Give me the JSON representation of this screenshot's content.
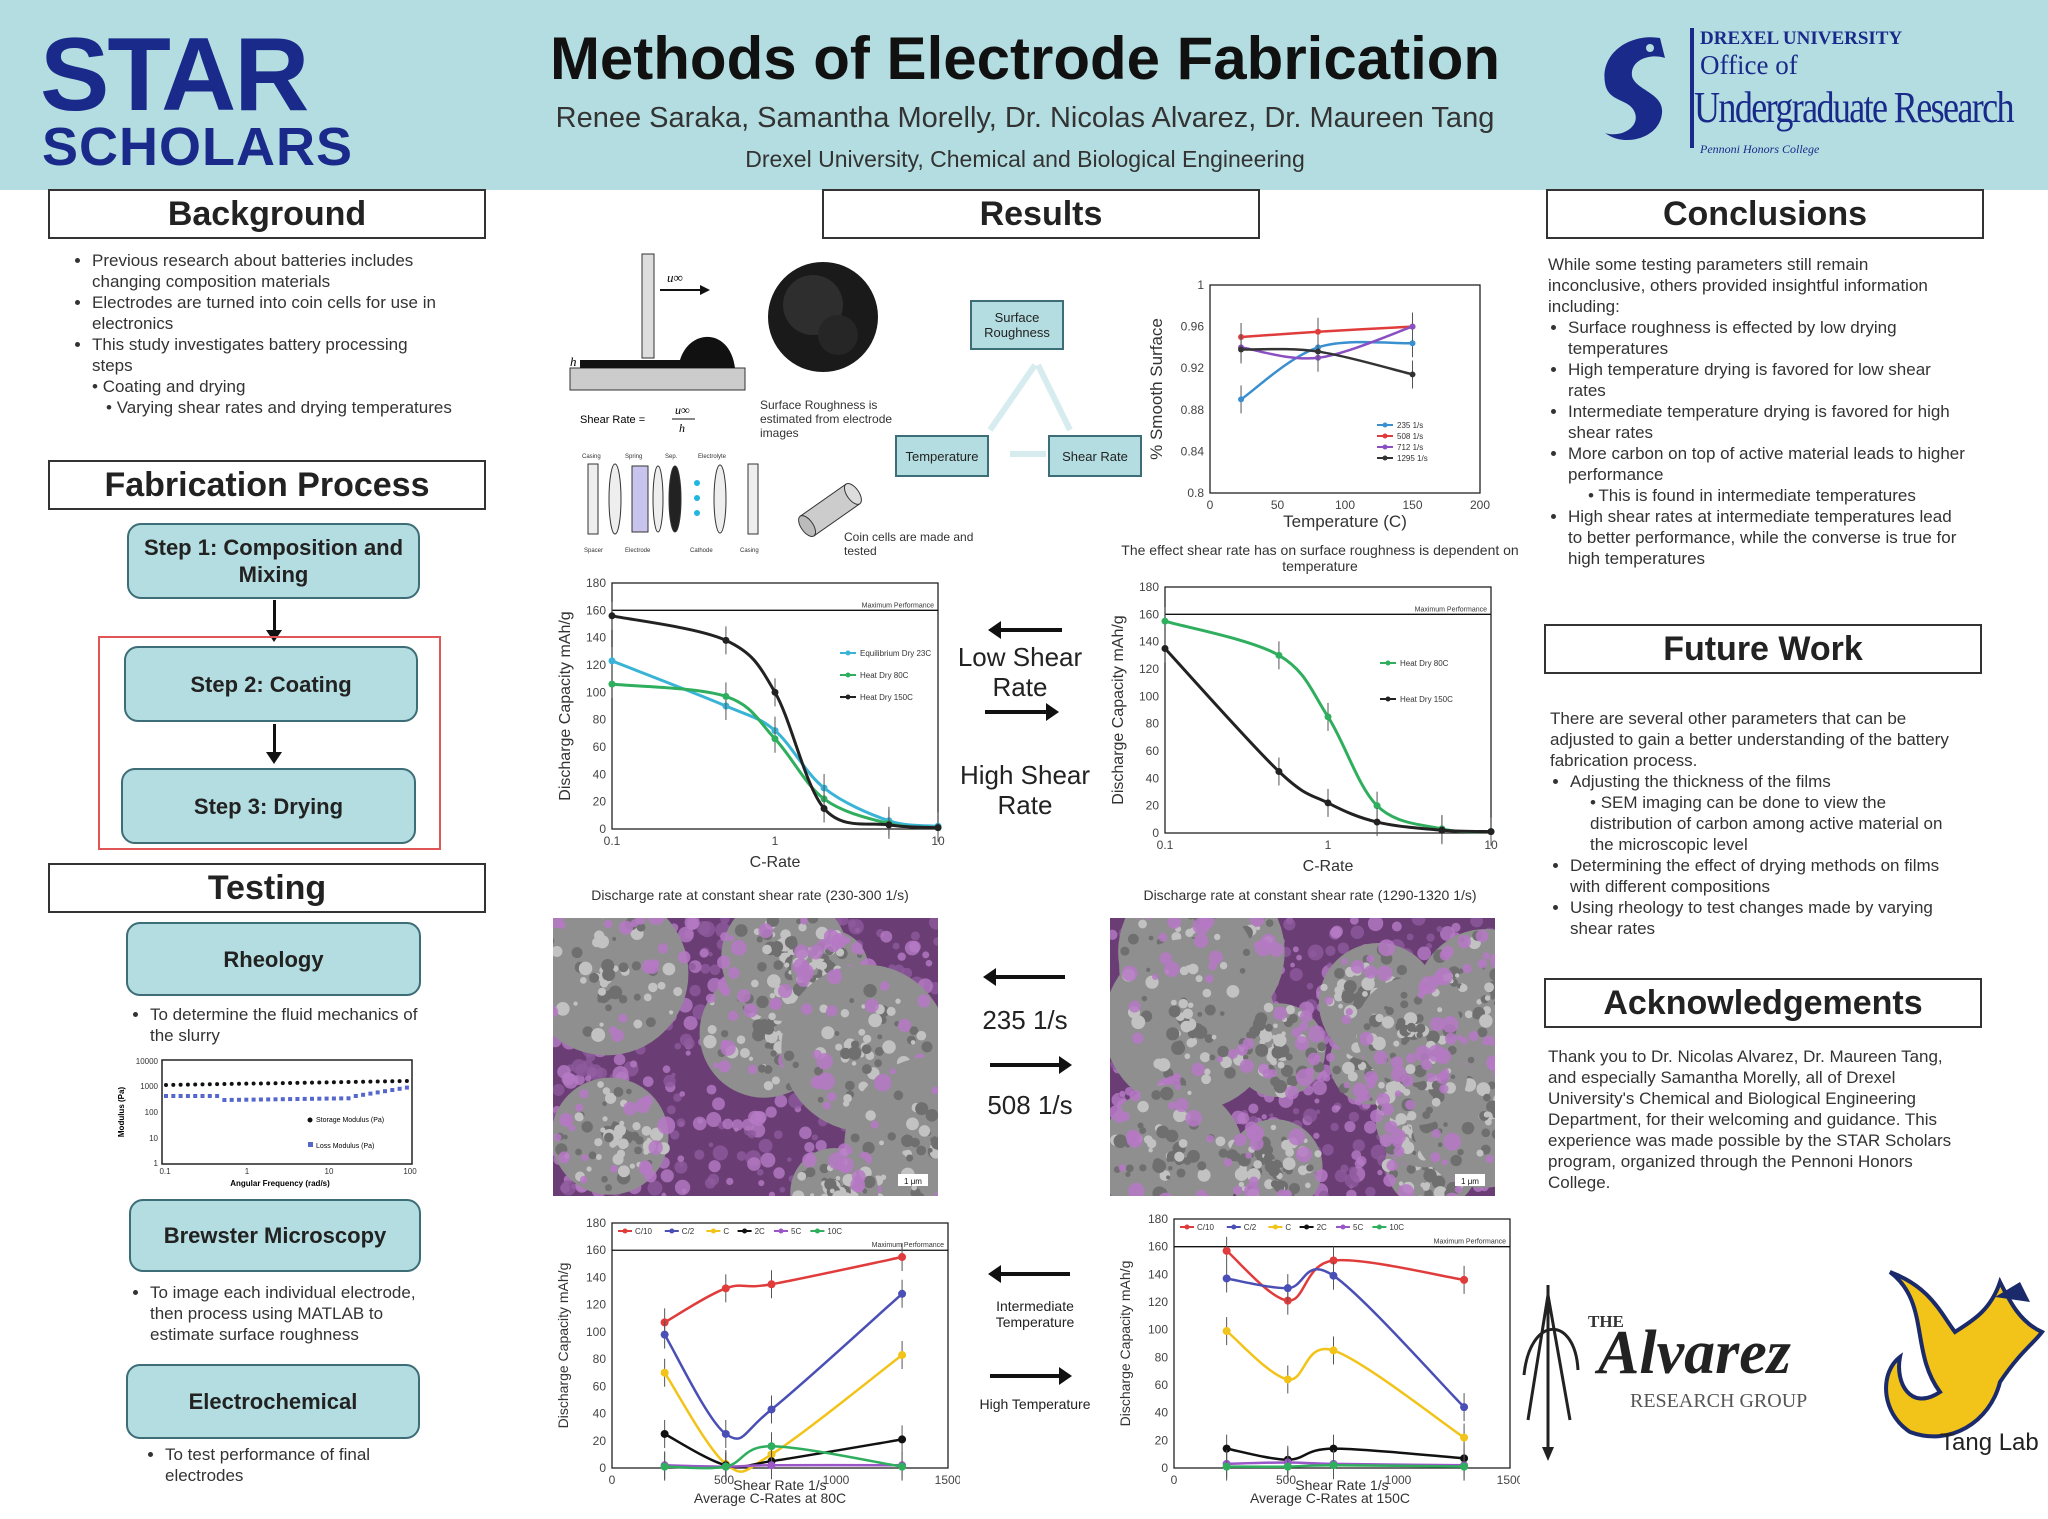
{
  "header": {
    "star_logo_line1": "STAR",
    "star_logo_line2": "SCHOLARS",
    "title": "Methods of Electrode Fabrication",
    "authors": "Renee Saraka, Samantha Morelly, Dr. Nicolas Alvarez, Dr. Maureen Tang",
    "affiliation": "Drexel University, Chemical and Biological Engineering",
    "drexel_logo": {
      "line1": "DREXEL UNIVERSITY",
      "line2": "Office of",
      "line3": "Undergraduate Research",
      "line4": "Pennoni Honors College"
    }
  },
  "background": {
    "heading": "Background",
    "bullets": [
      "Previous research about batteries includes changing composition materials",
      "Electrodes are turned into coin cells for use in electronics",
      "This study investigates battery processing steps"
    ],
    "sub1": "Coating and drying",
    "sub2": "Varying shear rates and drying temperatures"
  },
  "fabrication": {
    "heading": "Fabrication Process",
    "step1": "Step 1: Composition and Mixing",
    "step2": "Step 2: Coating",
    "step3": "Step 3: Drying"
  },
  "testing": {
    "heading": "Testing",
    "rheology": "Rheology",
    "rheology_text": "To determine the fluid mechanics of the slurry",
    "brewster": "Brewster Microscopy",
    "brewster_text": "To image each individual electrode, then process using MATLAB to estimate surface roughness",
    "electro": "Electrochemical",
    "electro_text": "To test performance of final electrodes",
    "rheo_chart": {
      "ylabel": "Modulus (Pa)",
      "xlabel": "Angular Frequency (rad/s)",
      "legend1": "Storage Modulus (Pa)",
      "legend2": "Loss Modulus (Pa)",
      "yticks": [
        "10000",
        "1000",
        "100",
        "10",
        "1"
      ],
      "xticks": [
        "0.1",
        "1",
        "10",
        "100"
      ]
    }
  },
  "results": {
    "heading": "Results",
    "shear_diagram": {
      "u_label": "u∞",
      "h_label": "h",
      "formula": "Shear Rate =",
      "num": "u∞",
      "den": "h"
    },
    "roughness_caption": "Surface Roughness is estimated from electrode images",
    "coin_caption": "Coin cells are made and tested",
    "coin_parts": [
      "Casing",
      "Spring",
      "Spacer",
      "Electrode",
      "Sep.",
      "Electrolyte",
      "Cathode",
      "Casing"
    ],
    "triangle": {
      "top": "Surface Roughness",
      "left": "Temperature",
      "right": "Shear Rate"
    },
    "low_shear": "Low Shear Rate",
    "high_shear": "High Shear Rate",
    "rate_235": "235 1/s",
    "rate_508": "508 1/s",
    "intermediate_temp": "Intermediate Temperature",
    "high_temp": "High Temperature",
    "scale_bar": "1 μm",
    "caption_a": "Discharge rate at constant shear rate (230-300 1/s)",
    "caption_b": "Discharge rate at constant shear rate (1290-1320 1/s)",
    "caption_rough": "The effect shear rate has on surface roughness is dependent on temperature",
    "caption_c": "Average C-Rates at 80C",
    "caption_d": "Average C-Rates at 150C"
  },
  "conclusions": {
    "heading": "Conclusions",
    "intro": "While some testing parameters still remain inconclusive, others provided insightful information including:",
    "b1": "Surface roughness is effected by low drying temperatures",
    "b2": "High temperature drying is favored for low shear rates",
    "b3": "Intermediate temperature drying is favored for high shear rates",
    "b4": "More carbon on top of active material leads to higher performance",
    "b4sub": "This is found in intermediate temperatures",
    "b5": "High shear rates at intermediate temperatures lead to better performance, while the converse is true for high temperatures"
  },
  "future": {
    "heading": "Future Work",
    "intro": "There are several other parameters that can be adjusted to gain a better understanding of the battery fabrication process.",
    "b1": "Adjusting the thickness of the films",
    "b1sub": "SEM imaging can be done to view the distribution of carbon among active material on the microscopic level",
    "b2": "Determining the effect of drying methods on films with different compositions",
    "b3": "Using rheology to test changes made by varying shear rates"
  },
  "ack": {
    "heading": "Acknowledgements",
    "text": "Thank you to Dr. Nicolas Alvarez, Dr. Maureen Tang, and especially Samantha Morelly, all of Drexel University's Chemical and Biological Engineering Department, for their welcoming and guidance. This experience was made possible by the STAR Scholars program, organized through the Pennoni Honors College."
  },
  "logos": {
    "alvarez_the": "THE",
    "alvarez_name": "Alvarez",
    "alvarez_sub": "RESEARCH GROUP",
    "tang": "Tang Lab"
  },
  "colors": {
    "header_bg": "#b3dde0",
    "box_fill": "#b3dde0",
    "navy": "#1a2a8a",
    "sem_purple": "#a45bb3"
  },
  "chart_data": [
    {
      "id": "roughness",
      "type": "line",
      "xlabel": "Temperature (C)",
      "ylabel": "% Smooth Surface",
      "xlim": [
        0,
        200
      ],
      "ylim": [
        0.8,
        1
      ],
      "xticks": [
        0,
        50,
        100,
        150,
        200
      ],
      "yticks": [
        0.8,
        0.84,
        0.88,
        0.92,
        0.96,
        1
      ],
      "x": [
        23,
        80,
        150
      ],
      "series": [
        {
          "name": "235 1/s",
          "color": "#3a8fd0",
          "values": [
            0.89,
            0.94,
            0.944
          ]
        },
        {
          "name": "508 1/s",
          "color": "#e03c3c",
          "values": [
            0.95,
            0.955,
            0.96
          ]
        },
        {
          "name": "712 1/s",
          "color": "#8a4fc2",
          "values": [
            0.94,
            0.93,
            0.96
          ]
        },
        {
          "name": "1295 1/s",
          "color": "#333333",
          "values": [
            0.938,
            0.936,
            0.914
          ]
        }
      ]
    },
    {
      "id": "discharge-low",
      "type": "line",
      "xlabel": "C-Rate",
      "ylabel": "Discharge Capacity mAh/g",
      "xscale": "log",
      "xlim": [
        0.1,
        10
      ],
      "ylim": [
        0,
        180
      ],
      "xticks": [
        0.1,
        1,
        10
      ],
      "yticks": [
        0,
        20,
        40,
        60,
        80,
        100,
        120,
        140,
        160,
        180
      ],
      "reference": {
        "label": "Maximum Performance",
        "value": 160
      },
      "x": [
        0.1,
        0.5,
        1,
        2,
        5,
        10
      ],
      "series": [
        {
          "name": "Equilibrium Dry 23C",
          "color": "#39b3d6",
          "values": [
            123,
            90,
            72,
            30,
            6,
            2
          ]
        },
        {
          "name": "Heat Dry 80C",
          "color": "#2fae5e",
          "values": [
            106,
            97,
            66,
            22,
            4,
            1
          ]
        },
        {
          "name": "Heat Dry 150C",
          "color": "#222222",
          "values": [
            156,
            138,
            100,
            15,
            3,
            1
          ]
        }
      ]
    },
    {
      "id": "discharge-high",
      "type": "line",
      "xlabel": "C-Rate",
      "ylabel": "Discharge Capacity mAh/g",
      "xscale": "log",
      "xlim": [
        0.1,
        10
      ],
      "ylim": [
        0,
        180
      ],
      "xticks": [
        0.1,
        1,
        10
      ],
      "yticks": [
        0,
        20,
        40,
        60,
        80,
        100,
        120,
        140,
        160,
        180
      ],
      "reference": {
        "label": "Maximum Performance",
        "value": 160
      },
      "x": [
        0.1,
        0.5,
        1,
        2,
        5,
        10
      ],
      "series": [
        {
          "name": "Heat Dry 80C",
          "color": "#2fae5e",
          "values": [
            155,
            130,
            85,
            20,
            3,
            1
          ]
        },
        {
          "name": "Heat Dry 150C",
          "color": "#222222",
          "values": [
            135,
            45,
            22,
            8,
            2,
            1
          ]
        }
      ]
    },
    {
      "id": "crate-80",
      "type": "line",
      "xlabel": "Shear Rate 1/s",
      "ylabel": "Discharge Capacity mAh/g",
      "xlim": [
        0,
        1500
      ],
      "ylim": [
        0,
        180
      ],
      "xticks": [
        0,
        500,
        1000,
        1500
      ],
      "yticks": [
        0,
        20,
        40,
        60,
        80,
        100,
        120,
        140,
        160,
        180
      ],
      "reference": {
        "label": "Maximum Performance",
        "value": 160
      },
      "x": [
        235,
        508,
        712,
        1295
      ],
      "series": [
        {
          "name": "C/10",
          "color": "#e03c3c",
          "values": [
            107,
            132,
            135,
            155
          ]
        },
        {
          "name": "C/2",
          "color": "#4a4fb5",
          "values": [
            98,
            25,
            43,
            128
          ]
        },
        {
          "name": "C",
          "color": "#f2c318",
          "values": [
            70,
            3,
            10,
            83
          ]
        },
        {
          "name": "2C",
          "color": "#111111",
          "values": [
            25,
            2,
            5,
            21
          ]
        },
        {
          "name": "5C",
          "color": "#9a57c8",
          "values": [
            2,
            1,
            2,
            2
          ]
        },
        {
          "name": "10C",
          "color": "#2fae5e",
          "values": [
            1,
            1,
            16,
            1
          ]
        }
      ]
    },
    {
      "id": "crate-150",
      "type": "line",
      "xlabel": "Shear Rate 1/s",
      "ylabel": "Discharge Capacity mAh/g",
      "xlim": [
        0,
        1500
      ],
      "ylim": [
        0,
        180
      ],
      "xticks": [
        0,
        500,
        1000,
        1500
      ],
      "yticks": [
        0,
        20,
        40,
        60,
        80,
        100,
        120,
        140,
        160,
        180
      ],
      "reference": {
        "label": "Maximum Performance",
        "value": 160
      },
      "x": [
        235,
        508,
        712,
        1295
      ],
      "series": [
        {
          "name": "C/10",
          "color": "#e03c3c",
          "values": [
            157,
            121,
            150,
            136
          ]
        },
        {
          "name": "C/2",
          "color": "#4a4fb5",
          "values": [
            137,
            130,
            139,
            44
          ]
        },
        {
          "name": "C",
          "color": "#f2c318",
          "values": [
            99,
            64,
            85,
            22
          ]
        },
        {
          "name": "2C",
          "color": "#111111",
          "values": [
            14,
            6,
            14,
            7
          ]
        },
        {
          "name": "5C",
          "color": "#9a57c8",
          "values": [
            3,
            4,
            3,
            2
          ]
        },
        {
          "name": "10C",
          "color": "#2fae5e",
          "values": [
            1,
            1,
            2,
            1
          ]
        }
      ]
    }
  ]
}
